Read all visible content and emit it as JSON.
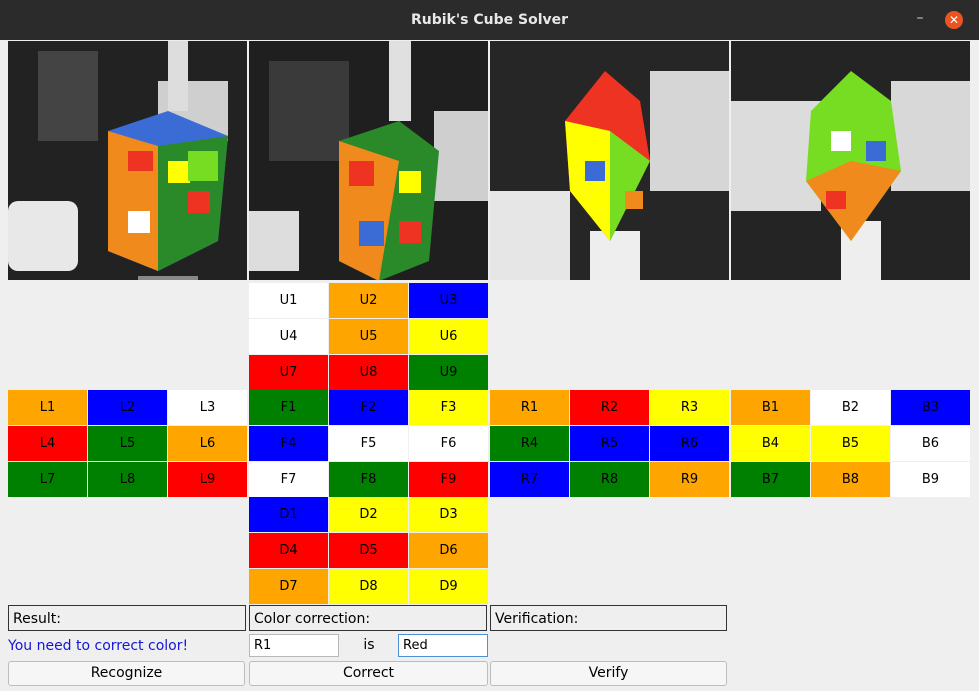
{
  "window": {
    "title": "Rubik's Cube Solver",
    "minimize": "–",
    "close": "✕"
  },
  "colors": {
    "white": "#ffffff",
    "orange": "#ffa500",
    "blue": "#0000ff",
    "yellow": "#ffff00",
    "red": "#ff0000",
    "green": "#008000"
  },
  "faces": {
    "U": [
      {
        "label": "U1",
        "color": "white"
      },
      {
        "label": "U2",
        "color": "orange"
      },
      {
        "label": "U3",
        "color": "blue"
      },
      {
        "label": "U4",
        "color": "white"
      },
      {
        "label": "U5",
        "color": "orange"
      },
      {
        "label": "U6",
        "color": "yellow"
      },
      {
        "label": "U7",
        "color": "red"
      },
      {
        "label": "U8",
        "color": "red"
      },
      {
        "label": "U9",
        "color": "green"
      }
    ],
    "L": [
      {
        "label": "L1",
        "color": "orange"
      },
      {
        "label": "L2",
        "color": "blue"
      },
      {
        "label": "L3",
        "color": "white"
      },
      {
        "label": "L4",
        "color": "red"
      },
      {
        "label": "L5",
        "color": "green"
      },
      {
        "label": "L6",
        "color": "orange"
      },
      {
        "label": "L7",
        "color": "green"
      },
      {
        "label": "L8",
        "color": "green"
      },
      {
        "label": "L9",
        "color": "red"
      }
    ],
    "F": [
      {
        "label": "F1",
        "color": "green"
      },
      {
        "label": "F2",
        "color": "blue"
      },
      {
        "label": "F3",
        "color": "yellow"
      },
      {
        "label": "F4",
        "color": "blue"
      },
      {
        "label": "F5",
        "color": "white"
      },
      {
        "label": "F6",
        "color": "white"
      },
      {
        "label": "F7",
        "color": "white"
      },
      {
        "label": "F8",
        "color": "green"
      },
      {
        "label": "F9",
        "color": "red"
      }
    ],
    "R": [
      {
        "label": "R1",
        "color": "orange"
      },
      {
        "label": "R2",
        "color": "red"
      },
      {
        "label": "R3",
        "color": "yellow"
      },
      {
        "label": "R4",
        "color": "green"
      },
      {
        "label": "R5",
        "color": "blue"
      },
      {
        "label": "R6",
        "color": "blue"
      },
      {
        "label": "R7",
        "color": "blue"
      },
      {
        "label": "R8",
        "color": "green"
      },
      {
        "label": "R9",
        "color": "orange"
      }
    ],
    "B": [
      {
        "label": "B1",
        "color": "orange"
      },
      {
        "label": "B2",
        "color": "white"
      },
      {
        "label": "B3",
        "color": "blue"
      },
      {
        "label": "B4",
        "color": "yellow"
      },
      {
        "label": "B5",
        "color": "yellow"
      },
      {
        "label": "B6",
        "color": "white"
      },
      {
        "label": "B7",
        "color": "green"
      },
      {
        "label": "B8",
        "color": "orange"
      },
      {
        "label": "B9",
        "color": "white"
      }
    ],
    "D": [
      {
        "label": "D1",
        "color": "blue"
      },
      {
        "label": "D2",
        "color": "yellow"
      },
      {
        "label": "D3",
        "color": "yellow"
      },
      {
        "label": "D4",
        "color": "red"
      },
      {
        "label": "D5",
        "color": "red"
      },
      {
        "label": "D6",
        "color": "orange"
      },
      {
        "label": "D7",
        "color": "orange"
      },
      {
        "label": "D8",
        "color": "yellow"
      },
      {
        "label": "D9",
        "color": "yellow"
      }
    ]
  },
  "panels": {
    "result_label": "Result:",
    "color_correction_label": "Color correction:",
    "verification_label": "Verification:"
  },
  "status": {
    "message": "You need to correct color!"
  },
  "correction": {
    "sticker_value": "R1",
    "is_label": "is",
    "color_value": "Red"
  },
  "buttons": {
    "recognize": "Recognize",
    "correct": "Correct",
    "verify": "Verify"
  }
}
